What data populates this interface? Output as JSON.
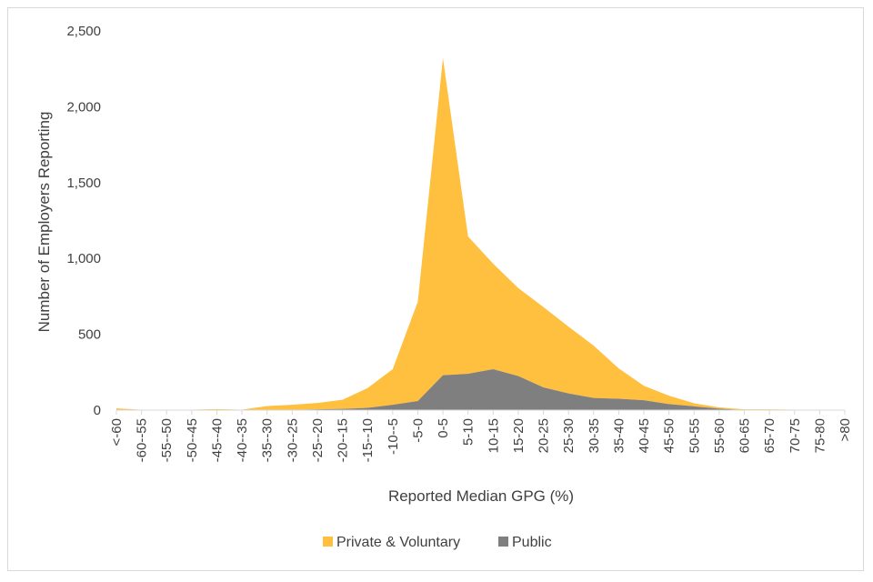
{
  "chart_data": {
    "type": "area",
    "xlabel": "Reported Median GPG (%)",
    "ylabel": "Number of Employers Reporting",
    "ylim": [
      0,
      2500
    ],
    "yticks": [
      "0",
      "500",
      "1,000",
      "1,500",
      "2,000",
      "2,500"
    ],
    "ytick_values": [
      0,
      500,
      1000,
      1500,
      2000,
      2500
    ],
    "stacked": true,
    "grid": false,
    "legend_position": "bottom",
    "categories": [
      "<-60",
      "-60--55",
      "-55--50",
      "-50--45",
      "-45--40",
      "-40--35",
      "-35--30",
      "-30--25",
      "-25--20",
      "-20--15",
      "-15--10",
      "-10--5",
      "-5-0",
      "0-5",
      "5-10",
      "10-15",
      "15-20",
      "20-25",
      "25-30",
      "30-35",
      "35-40",
      "40-45",
      "45-50",
      "50-55",
      "55-60",
      "60-65",
      "65-70",
      "70-75",
      "75-80",
      ">80"
    ],
    "series": [
      {
        "name": "Public",
        "color": "#7f7f7f",
        "values": [
          0,
          0,
          0,
          0,
          0,
          0,
          0,
          2,
          5,
          8,
          15,
          35,
          60,
          230,
          240,
          270,
          225,
          150,
          110,
          80,
          75,
          65,
          40,
          25,
          10,
          0,
          0,
          0,
          0,
          0
        ]
      },
      {
        "name": "Private & Voluntary",
        "color": "#ffbf3f",
        "values": [
          12,
          2,
          3,
          3,
          7,
          3,
          27,
          33,
          42,
          60,
          130,
          235,
          655,
          2090,
          905,
          695,
          580,
          530,
          440,
          345,
          200,
          95,
          55,
          20,
          8,
          5,
          5,
          3,
          2,
          0
        ]
      }
    ]
  }
}
